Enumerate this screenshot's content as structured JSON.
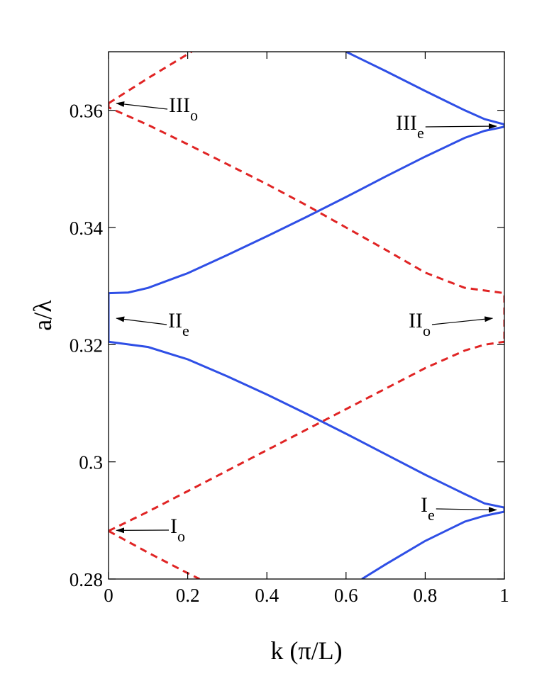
{
  "chart_data": {
    "type": "line",
    "xlabel": "k (π/L)",
    "ylabel": "a/λ",
    "xlim": [
      0,
      1
    ],
    "ylim": [
      0.28,
      0.37
    ],
    "xticks": [
      0,
      0.2,
      0.4,
      0.6,
      0.8,
      1
    ],
    "yticks": [
      0.28,
      0.3,
      0.32,
      0.34,
      0.36
    ],
    "series": [
      {
        "color": "#2f4fe6",
        "style": "solid",
        "x": [
          0.64,
          0.7,
          0.8,
          0.9,
          0.95,
          1,
          1
        ],
        "values": [
          0.28,
          0.2825,
          0.2865,
          0.2898,
          0.2908,
          0.2915,
          0.2922
        ]
      },
      {
        "color": "#2f4fe6",
        "style": "solid",
        "x": [
          0,
          0,
          0.1,
          0.2,
          0.3,
          0.4,
          0.5,
          0.6,
          0.7,
          0.8,
          0.9,
          0.95,
          1
        ],
        "values": [
          0.3288,
          0.3205,
          0.3196,
          0.3175,
          0.3146,
          0.3115,
          0.3082,
          0.3048,
          0.3013,
          0.2978,
          0.2945,
          0.2929,
          0.2922
        ]
      },
      {
        "color": "#2f4fe6",
        "style": "solid",
        "x": [
          0,
          0.05,
          0.1,
          0.2,
          0.3,
          0.4,
          0.5,
          0.6,
          0.7,
          0.8,
          0.9,
          0.95,
          1,
          1
        ],
        "values": [
          0.3288,
          0.3289,
          0.3297,
          0.3322,
          0.3353,
          0.3385,
          0.3418,
          0.3452,
          0.3487,
          0.3521,
          0.3553,
          0.3565,
          0.3572,
          0.3576
        ]
      },
      {
        "color": "#2f4fe6",
        "style": "solid",
        "x": [
          0.6,
          0.7,
          0.8,
          0.9,
          0.95,
          1
        ],
        "values": [
          0.37,
          0.3667,
          0.3633,
          0.36,
          0.3585,
          0.3576
        ]
      },
      {
        "color": "#e02424",
        "style": "dashed",
        "x": [
          0,
          0.1,
          0.2,
          0.3,
          0.4,
          0.5,
          0.6,
          0.7,
          0.8,
          0.9,
          0.95,
          1
        ],
        "values": [
          0.2882,
          0.2915,
          0.295,
          0.2985,
          0.302,
          0.3055,
          0.309,
          0.3125,
          0.316,
          0.319,
          0.32,
          0.3205
        ]
      },
      {
        "color": "#e02424",
        "style": "dashed",
        "x": [
          0,
          0.1,
          0.2,
          0.23
        ],
        "values": [
          0.2882,
          0.2845,
          0.281,
          0.28
        ]
      },
      {
        "color": "#e02424",
        "style": "dashed",
        "x": [
          0,
          0,
          0.1,
          0.2,
          0.3,
          0.4,
          0.5,
          0.6,
          0.7,
          0.8,
          0.9,
          1,
          1
        ],
        "values": [
          0.3612,
          0.3605,
          0.3575,
          0.3542,
          0.3508,
          0.3474,
          0.3438,
          0.34,
          0.3362,
          0.3323,
          0.3297,
          0.3288,
          0.3205
        ]
      },
      {
        "color": "#e02424",
        "style": "dashed",
        "x": [
          0,
          0.1,
          0.21
        ],
        "values": [
          0.3612,
          0.3655,
          0.37
        ]
      }
    ],
    "annotations": [
      {
        "text": "III",
        "sub": "o",
        "xy": [
          0.02,
          0.3612
        ]
      },
      {
        "text": "III",
        "sub": "e",
        "xy": [
          0.98,
          0.3573
        ]
      },
      {
        "text": "II",
        "sub": "e",
        "xy": [
          0.02,
          0.3245
        ]
      },
      {
        "text": "II",
        "sub": "o",
        "xy": [
          0.97,
          0.3245
        ]
      },
      {
        "text": "I",
        "sub": "e",
        "xy": [
          0.98,
          0.2918
        ]
      },
      {
        "text": "I",
        "sub": "o",
        "xy": [
          0.02,
          0.2883
        ]
      }
    ]
  }
}
